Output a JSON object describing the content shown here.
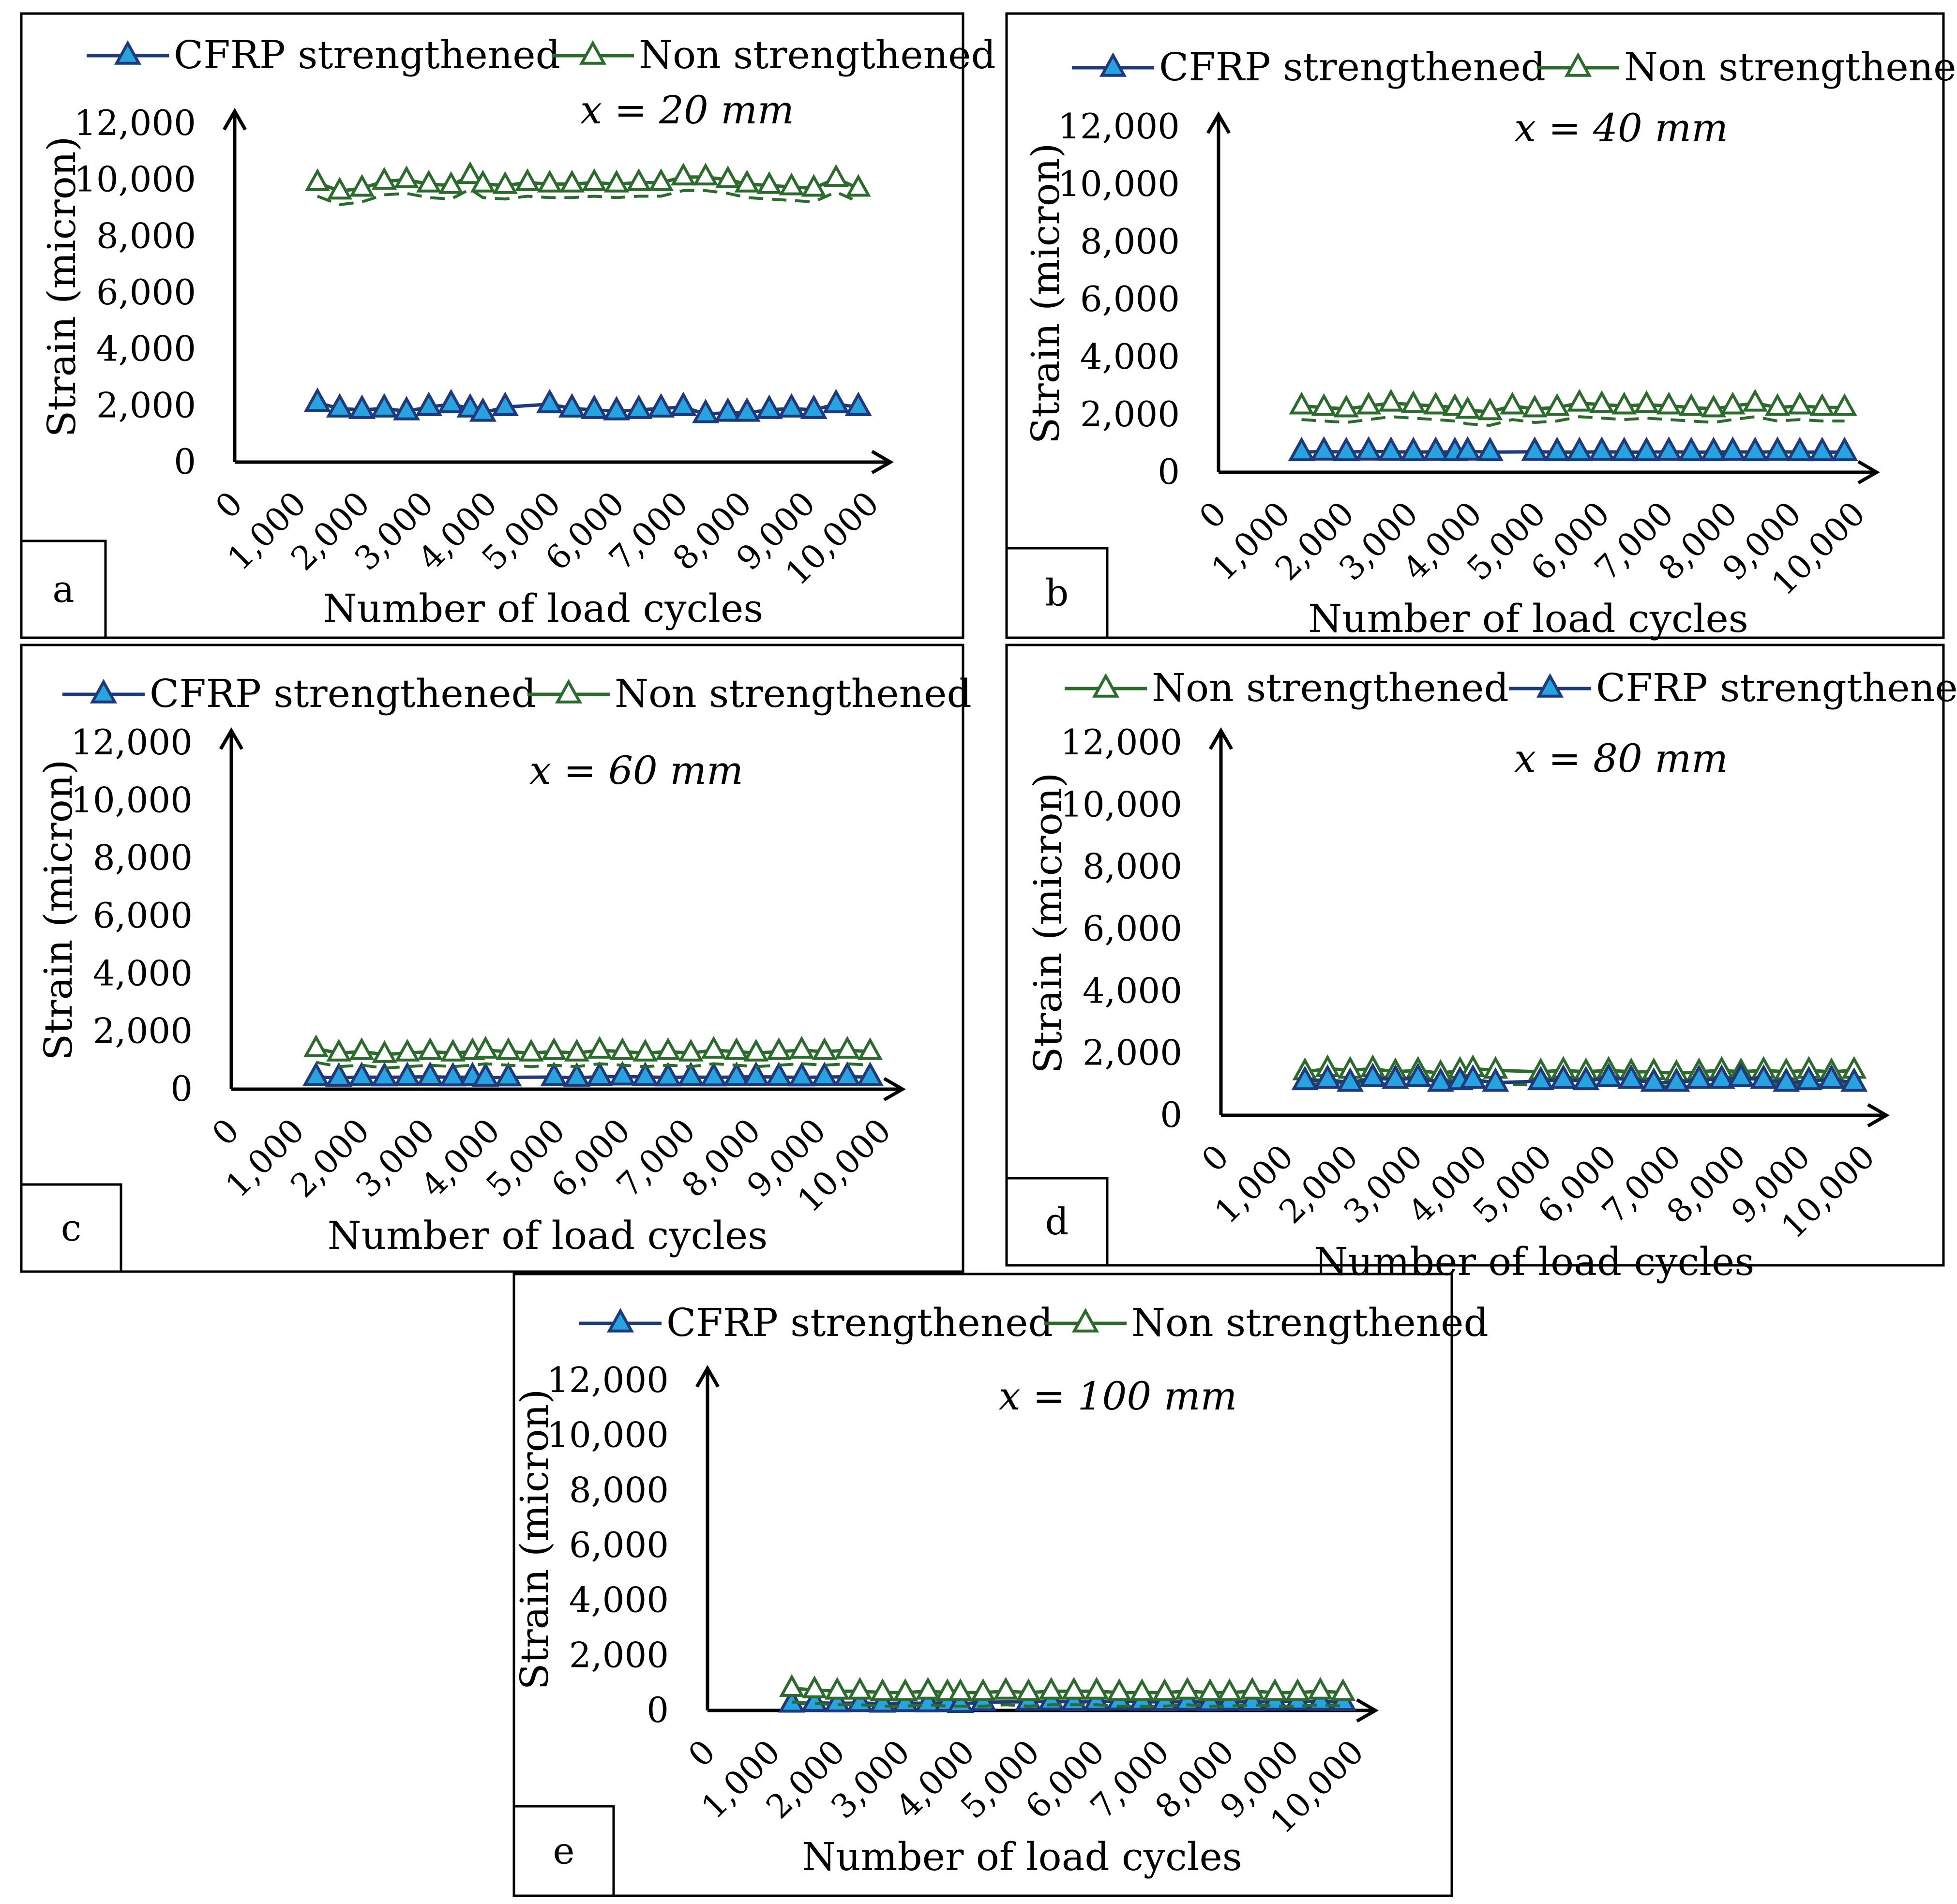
{
  "figure": {
    "axis_title_y": "Strain (micron)",
    "axis_title_x": "Number of load cycles"
  },
  "series_styles": {
    "cfrp": {
      "line_color": "#1f3a7a",
      "marker_fill": "#29a3e0",
      "marker_stroke": "#1f3a7a"
    },
    "non": {
      "line_color": "#2d6a2d",
      "marker_fill": "#ffffff",
      "marker_stroke": "#2d6a2d"
    }
  },
  "chart_data": [
    {
      "panel": "a",
      "type": "line",
      "annotation": "x = 20 mm",
      "ylabel": "Strain (micron)",
      "xlabel": "Number of load cycles",
      "x_tick_labels": [
        "0",
        "1,000",
        "2,000",
        "3,000",
        "4,000",
        "5,000",
        "6,000",
        "7,000",
        "8,000",
        "9,000",
        "10,000"
      ],
      "y_tick_labels": [
        "0",
        "2,000",
        "4,000",
        "6,000",
        "8,000",
        "10,000",
        "12,000"
      ],
      "ylim": [
        0,
        12000
      ],
      "xlim": [
        0,
        10000
      ],
      "legend": [
        "CFRP strengthened",
        "Non strengthened"
      ],
      "series": [
        {
          "name": "CFRP strengthened",
          "key": "cfrp",
          "x": [
            1300,
            1650,
            2000,
            2350,
            2700,
            3050,
            3400,
            3700,
            3900,
            4250,
            4950,
            5300,
            5650,
            6000,
            6350,
            6700,
            7050,
            7400,
            7750,
            8050,
            8400,
            8750,
            9100,
            9450,
            9800
          ],
          "values": [
            2100,
            1900,
            1850,
            1900,
            1800,
            1950,
            2050,
            1900,
            1750,
            1950,
            2050,
            1900,
            1850,
            1800,
            1850,
            1900,
            1950,
            1700,
            1750,
            1750,
            1850,
            1900,
            1850,
            2050,
            1950
          ]
        },
        {
          "name": "Non strengthened",
          "key": "non",
          "x": [
            1300,
            1650,
            2000,
            2350,
            2700,
            3050,
            3400,
            3700,
            3900,
            4250,
            4600,
            4950,
            5300,
            5650,
            6000,
            6350,
            6700,
            7050,
            7400,
            7750,
            8050,
            8400,
            8750,
            9100,
            9450,
            9800
          ],
          "values": [
            9900,
            9600,
            9700,
            9950,
            10000,
            9850,
            9800,
            10150,
            9850,
            9800,
            9900,
            9850,
            9850,
            9900,
            9850,
            9900,
            9900,
            10100,
            10100,
            10000,
            9850,
            9800,
            9750,
            9700,
            10050,
            9700
          ]
        }
      ]
    },
    {
      "panel": "b",
      "type": "line",
      "annotation": "x = 40 mm",
      "ylabel": "Strain (micron)",
      "xlabel": "Number of load cycles",
      "x_tick_labels": [
        "0",
        "1,000",
        "2,000",
        "3,000",
        "4,000",
        "5,000",
        "6,000",
        "7,000",
        "8,000",
        "9,000",
        "10,000"
      ],
      "y_tick_labels": [
        "0",
        "2,000",
        "4,000",
        "6,000",
        "8,000",
        "10,000",
        "12,000"
      ],
      "ylim": [
        0,
        12000
      ],
      "xlim": [
        0,
        10000
      ],
      "legend": [
        "CFRP strengthened",
        "Non strengthened"
      ],
      "series": [
        {
          "name": "CFRP strengthened",
          "key": "cfrp",
          "x": [
            1300,
            1650,
            2000,
            2350,
            2700,
            3050,
            3400,
            3700,
            3900,
            4250,
            4950,
            5300,
            5650,
            6000,
            6350,
            6700,
            7050,
            7400,
            7750,
            8050,
            8400,
            8750,
            9100,
            9450,
            9800
          ],
          "values": [
            700,
            720,
            700,
            720,
            710,
            700,
            710,
            700,
            720,
            700,
            710,
            700,
            700,
            710,
            700,
            700,
            710,
            700,
            700,
            710,
            700,
            710,
            700,
            700,
            700
          ]
        },
        {
          "name": "Non strengthened",
          "key": "non",
          "x": [
            1300,
            1650,
            2000,
            2350,
            2700,
            3050,
            3400,
            3700,
            3900,
            4250,
            4600,
            4950,
            5300,
            5650,
            6000,
            6350,
            6700,
            7050,
            7400,
            7750,
            8050,
            8400,
            8750,
            9100,
            9450,
            9800
          ],
          "values": [
            2300,
            2250,
            2200,
            2300,
            2400,
            2350,
            2300,
            2250,
            2150,
            2100,
            2300,
            2200,
            2250,
            2400,
            2350,
            2300,
            2350,
            2300,
            2250,
            2200,
            2300,
            2400,
            2250,
            2300,
            2250,
            2250
          ]
        }
      ]
    },
    {
      "panel": "c",
      "type": "line",
      "annotation": "x = 60 mm",
      "ylabel": "Strain (micron)",
      "xlabel": "Number of load cycles",
      "x_tick_labels": [
        "0",
        "1,000",
        "2,000",
        "3,000",
        "4,000",
        "5,000",
        "6,000",
        "7,000",
        "8,000",
        "9,000",
        "10,000"
      ],
      "y_tick_labels": [
        "0",
        "2,000",
        "4,000",
        "6,000",
        "8,000",
        "10,000",
        "12,000"
      ],
      "ylim": [
        0,
        12000
      ],
      "xlim": [
        0,
        10000
      ],
      "legend": [
        "CFRP strengthened",
        "Non strengthened"
      ],
      "series": [
        {
          "name": "CFRP strengthened",
          "key": "cfrp",
          "x": [
            1300,
            1650,
            2000,
            2350,
            2700,
            3050,
            3400,
            3700,
            3900,
            4250,
            4950,
            5300,
            5650,
            6000,
            6350,
            6700,
            7050,
            7400,
            7750,
            8050,
            8400,
            8750,
            9100,
            9450,
            9800
          ],
          "values": [
            420,
            400,
            420,
            410,
            420,
            430,
            410,
            420,
            400,
            410,
            420,
            400,
            430,
            440,
            420,
            410,
            420,
            410,
            420,
            430,
            420,
            410,
            420,
            430,
            420
          ]
        },
        {
          "name": "Non strengthened",
          "key": "non",
          "x": [
            1300,
            1650,
            2000,
            2350,
            2700,
            3050,
            3400,
            3700,
            3900,
            4250,
            4600,
            4950,
            5300,
            5650,
            6000,
            6350,
            6700,
            7050,
            7400,
            7750,
            8050,
            8400,
            8750,
            9100,
            9450,
            9800
          ],
          "values": [
            1400,
            1250,
            1300,
            1200,
            1250,
            1300,
            1250,
            1300,
            1350,
            1300,
            1250,
            1300,
            1250,
            1350,
            1300,
            1250,
            1300,
            1250,
            1350,
            1300,
            1250,
            1300,
            1350,
            1300,
            1350,
            1300
          ]
        }
      ]
    },
    {
      "panel": "d",
      "type": "line",
      "annotation": "x = 80 mm",
      "ylabel": "Strain (micron)",
      "xlabel": "Number of load cycles",
      "x_tick_labels": [
        "0",
        "1,000",
        "2,000",
        "3,000",
        "4,000",
        "5,000",
        "6,000",
        "7,000",
        "8,000",
        "9,000",
        "10,000"
      ],
      "y_tick_labels": [
        "0",
        "2,000",
        "4,000",
        "6,000",
        "8,000",
        "10,000",
        "12,000"
      ],
      "ylim": [
        0,
        12000
      ],
      "xlim": [
        0,
        10000
      ],
      "legend": [
        "Non strengthened",
        "CFRP strengthened"
      ],
      "series": [
        {
          "name": "Non strengthened",
          "key": "non",
          "x": [
            1300,
            1650,
            2000,
            2350,
            2700,
            3050,
            3400,
            3700,
            3900,
            4250,
            4950,
            5300,
            5650,
            6000,
            6350,
            6700,
            7050,
            7400,
            7750,
            8050,
            8400,
            8750,
            9100,
            9450,
            9800
          ],
          "values": [
            1400,
            1500,
            1450,
            1500,
            1400,
            1450,
            1350,
            1450,
            1500,
            1450,
            1400,
            1450,
            1400,
            1450,
            1400,
            1400,
            1350,
            1400,
            1450,
            1400,
            1450,
            1400,
            1450,
            1400,
            1450
          ]
        },
        {
          "name": "CFRP strengthened",
          "key": "cfrp",
          "x": [
            1300,
            1650,
            2000,
            2350,
            2700,
            3050,
            3400,
            3700,
            3900,
            4250,
            4950,
            5300,
            5650,
            6000,
            6350,
            6700,
            7050,
            7400,
            7750,
            8050,
            8400,
            8750,
            9100,
            9450,
            9800
          ],
          "values": [
            1100,
            1150,
            1050,
            1200,
            1150,
            1200,
            1050,
            1100,
            1150,
            1050,
            1100,
            1150,
            1100,
            1200,
            1150,
            1050,
            1050,
            1150,
            1150,
            1200,
            1150,
            1050,
            1100,
            1150,
            1050
          ]
        }
      ]
    },
    {
      "panel": "e",
      "type": "line",
      "annotation": "x = 100 mm",
      "ylabel": "Strain (micron)",
      "xlabel": "Number of load cycles",
      "x_tick_labels": [
        "0",
        "1,000",
        "2,000",
        "3,000",
        "4,000",
        "5,000",
        "6,000",
        "7,000",
        "8,000",
        "9,000",
        "10,000"
      ],
      "y_tick_labels": [
        "0",
        "2,000",
        "4,000",
        "6,000",
        "8,000",
        "10,000",
        "12,000"
      ],
      "ylim": [
        0,
        12000
      ],
      "xlim": [
        0,
        10000
      ],
      "legend": [
        "CFRP strengthened",
        "Non strengthened"
      ],
      "series": [
        {
          "name": "CFRP strengthened",
          "key": "cfrp",
          "x": [
            1300,
            1650,
            2000,
            2350,
            2700,
            3050,
            3400,
            3700,
            3900,
            4250,
            4950,
            5300,
            5650,
            6000,
            6350,
            6700,
            7050,
            7400,
            7750,
            8050,
            8400,
            8750,
            9100,
            9450,
            9800
          ],
          "values": [
            250,
            280,
            260,
            270,
            250,
            270,
            260,
            280,
            240,
            300,
            320,
            330,
            310,
            320,
            330,
            320,
            310,
            320,
            300,
            320,
            310,
            320,
            330,
            320,
            310
          ]
        },
        {
          "name": "Non strengthened",
          "key": "non",
          "x": [
            1300,
            1650,
            2000,
            2350,
            2700,
            3050,
            3400,
            3700,
            3900,
            4250,
            4600,
            4950,
            5300,
            5650,
            6000,
            6350,
            6700,
            7050,
            7400,
            7750,
            8050,
            8400,
            8750,
            9100,
            9450,
            9800
          ],
          "values": [
            800,
            750,
            700,
            700,
            650,
            650,
            700,
            650,
            650,
            650,
            700,
            650,
            700,
            700,
            700,
            650,
            650,
            650,
            700,
            650,
            650,
            700,
            650,
            650,
            700,
            650
          ]
        }
      ]
    }
  ]
}
